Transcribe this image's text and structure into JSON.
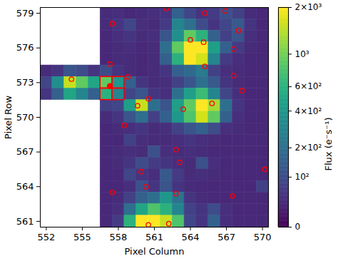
{
  "chart_data": {
    "type": "heatmap",
    "x_label": "Pixel Column",
    "y_label": "Pixel Row",
    "xlim": [
      551.5,
      570.5
    ],
    "ylim": [
      560.5,
      579.5
    ],
    "xticks": [
      552,
      555,
      558,
      561,
      564,
      567,
      570
    ],
    "yticks": [
      561,
      564,
      567,
      570,
      573,
      576,
      579
    ],
    "columns": [
      552,
      553,
      554,
      555,
      556,
      557,
      558,
      559,
      560,
      561,
      562,
      563,
      564,
      565,
      566,
      567,
      568,
      569,
      570
    ],
    "rows": [
      579,
      578,
      577,
      576,
      575,
      574,
      573,
      572,
      571,
      570,
      569,
      568,
      567,
      566,
      565,
      564,
      563,
      562,
      561
    ],
    "flux": [
      [
        null,
        null,
        null,
        null,
        null,
        45,
        50,
        40,
        45,
        50,
        60,
        150,
        90,
        60,
        70,
        110,
        80,
        45,
        40
      ],
      [
        null,
        null,
        null,
        null,
        null,
        45,
        60,
        90,
        50,
        45,
        70,
        300,
        200,
        100,
        60,
        90,
        130,
        60,
        40
      ],
      [
        null,
        null,
        null,
        null,
        null,
        40,
        50,
        60,
        45,
        50,
        120,
        350,
        900,
        600,
        150,
        80,
        120,
        50,
        40
      ],
      [
        null,
        null,
        null,
        null,
        null,
        40,
        45,
        50,
        40,
        45,
        200,
        900,
        2000,
        2000,
        450,
        150,
        70,
        45,
        40
      ],
      [
        null,
        null,
        null,
        null,
        null,
        40,
        45,
        45,
        40,
        45,
        150,
        600,
        2000,
        1600,
        300,
        70,
        50,
        40,
        40
      ],
      [
        45,
        60,
        120,
        100,
        60,
        100,
        60,
        45,
        40,
        45,
        60,
        150,
        180,
        250,
        80,
        50,
        45,
        40,
        40
      ],
      [
        90,
        350,
        1500,
        900,
        500,
        900,
        400,
        150,
        60,
        45,
        50,
        80,
        120,
        200,
        130,
        60,
        45,
        40,
        40
      ],
      [
        60,
        150,
        500,
        300,
        150,
        600,
        300,
        90,
        120,
        60,
        50,
        200,
        450,
        700,
        300,
        90,
        50,
        40,
        40
      ],
      [
        null,
        null,
        null,
        null,
        null,
        80,
        90,
        450,
        1500,
        200,
        120,
        450,
        900,
        2000,
        1300,
        200,
        60,
        40,
        40
      ],
      [
        null,
        null,
        null,
        null,
        null,
        45,
        60,
        120,
        200,
        80,
        150,
        400,
        800,
        1600,
        900,
        150,
        50,
        40,
        40
      ],
      [
        null,
        null,
        null,
        null,
        null,
        40,
        45,
        50,
        60,
        45,
        50,
        80,
        120,
        150,
        100,
        50,
        45,
        40,
        40
      ],
      [
        null,
        null,
        null,
        null,
        null,
        40,
        40,
        80,
        50,
        45,
        45,
        50,
        60,
        50,
        45,
        40,
        40,
        40,
        40
      ],
      [
        null,
        null,
        null,
        null,
        null,
        40,
        45,
        50,
        45,
        110,
        50,
        45,
        50,
        45,
        40,
        40,
        40,
        40,
        40
      ],
      [
        null,
        null,
        null,
        null,
        null,
        40,
        45,
        60,
        100,
        70,
        60,
        50,
        45,
        110,
        50,
        40,
        40,
        40,
        40
      ],
      [
        null,
        null,
        null,
        null,
        null,
        40,
        40,
        90,
        60,
        50,
        130,
        70,
        45,
        50,
        45,
        40,
        40,
        40,
        40
      ],
      [
        null,
        null,
        null,
        null,
        null,
        40,
        40,
        50,
        110,
        60,
        120,
        60,
        45,
        40,
        40,
        40,
        40,
        40,
        80
      ],
      [
        null,
        null,
        null,
        null,
        null,
        40,
        45,
        80,
        150,
        200,
        400,
        220,
        60,
        45,
        40,
        40,
        40,
        40,
        40
      ],
      [
        null,
        null,
        null,
        null,
        null,
        40,
        50,
        200,
        500,
        800,
        600,
        300,
        80,
        60,
        100,
        50,
        40,
        40,
        40
      ],
      [
        null,
        null,
        null,
        null,
        null,
        40,
        70,
        600,
        2000,
        2000,
        1500,
        800,
        90,
        60,
        150,
        50,
        40,
        40,
        40
      ]
    ],
    "color": "red",
    "marker": "circle",
    "sources": [
      [
        562.0,
        579.4
      ],
      [
        557.5,
        578.1
      ],
      [
        565.2,
        579.0
      ],
      [
        566.9,
        579.2
      ],
      [
        568.0,
        577.5
      ],
      [
        564.0,
        576.7
      ],
      [
        565.1,
        576.5
      ],
      [
        567.6,
        575.9
      ],
      [
        565.2,
        574.4
      ],
      [
        557.3,
        574.6
      ],
      [
        554.1,
        573.3
      ],
      [
        558.8,
        573.5
      ],
      [
        567.6,
        573.6
      ],
      [
        560.5,
        571.6
      ],
      [
        559.6,
        571.0
      ],
      [
        563.4,
        570.7
      ],
      [
        565.8,
        571.2
      ],
      [
        568.3,
        572.3
      ],
      [
        558.5,
        569.3
      ],
      [
        562.8,
        567.2
      ],
      [
        563.1,
        566.1
      ],
      [
        559.9,
        565.3
      ],
      [
        560.3,
        564.0
      ],
      [
        557.5,
        563.5
      ],
      [
        562.8,
        563.4
      ],
      [
        567.5,
        563.2
      ],
      [
        570.2,
        565.5
      ],
      [
        560.5,
        560.7
      ],
      [
        562.2,
        560.8
      ]
    ],
    "target": [
      557.3,
      572.7
    ],
    "aperture": [
      [
        557,
        572
      ],
      [
        558,
        572
      ],
      [
        557,
        573
      ],
      [
        558,
        573
      ]
    ],
    "colorbar": {
      "label": "Flux (e⁻s⁻¹)",
      "color": "viridis",
      "log": true,
      "range": [
        0,
        2000
      ],
      "ticks": [
        0,
        {
          "value": 100,
          "label": "10²"
        },
        {
          "value": 200,
          "label": "2×10²"
        },
        {
          "value": 400,
          "label": "4×10²"
        },
        {
          "value": 600,
          "label": "6×10²"
        },
        {
          "value": 1000,
          "label": "10³"
        },
        {
          "value": 2000,
          "label": "2×10³"
        }
      ]
    }
  }
}
